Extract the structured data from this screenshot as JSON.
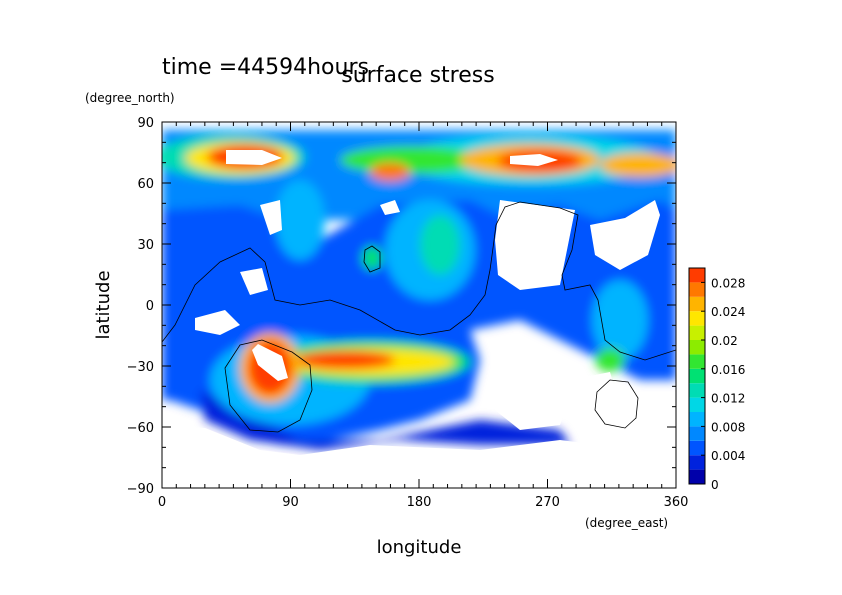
{
  "chart_data": {
    "type": "heatmap",
    "title": "surface stress",
    "subtitle": "time =44594hours",
    "xlabel": "longitude",
    "ylabel": "latitude",
    "xunit": "(degree_east)",
    "yunit": "(degree_north)",
    "xlim": [
      0,
      360
    ],
    "ylim": [
      -90,
      90
    ],
    "xticks": [
      "0",
      "90",
      "180",
      "270",
      "360"
    ],
    "yticks": [
      "90",
      "60",
      "30",
      "0",
      "−30",
      "−60",
      "−90"
    ],
    "colorbar": {
      "ticks": [
        "0.028",
        "0.024",
        "0.02",
        "0.016",
        "0.012",
        "0.008",
        "0.004",
        "0"
      ],
      "range": [
        0,
        0.03
      ],
      "colors": [
        "#0000aa",
        "#0022dd",
        "#0055ff",
        "#0088ff",
        "#00b4ff",
        "#00d7e6",
        "#00dcb4",
        "#00e173",
        "#32e632",
        "#8cec00",
        "#c8f000",
        "#ffe600",
        "#ffb400",
        "#ff7800",
        "#ff3c00"
      ]
    },
    "features": [
      {
        "lon": 40,
        "lat": 75,
        "value": 0.028
      },
      {
        "lon": 270,
        "lat": 70,
        "value": 0.03
      },
      {
        "lon": 70,
        "lat": -30,
        "value": 0.03
      },
      {
        "lon": 140,
        "lat": -20,
        "value": 0.024
      },
      {
        "lon": 320,
        "lat": -30,
        "value": 0.018
      }
    ]
  }
}
